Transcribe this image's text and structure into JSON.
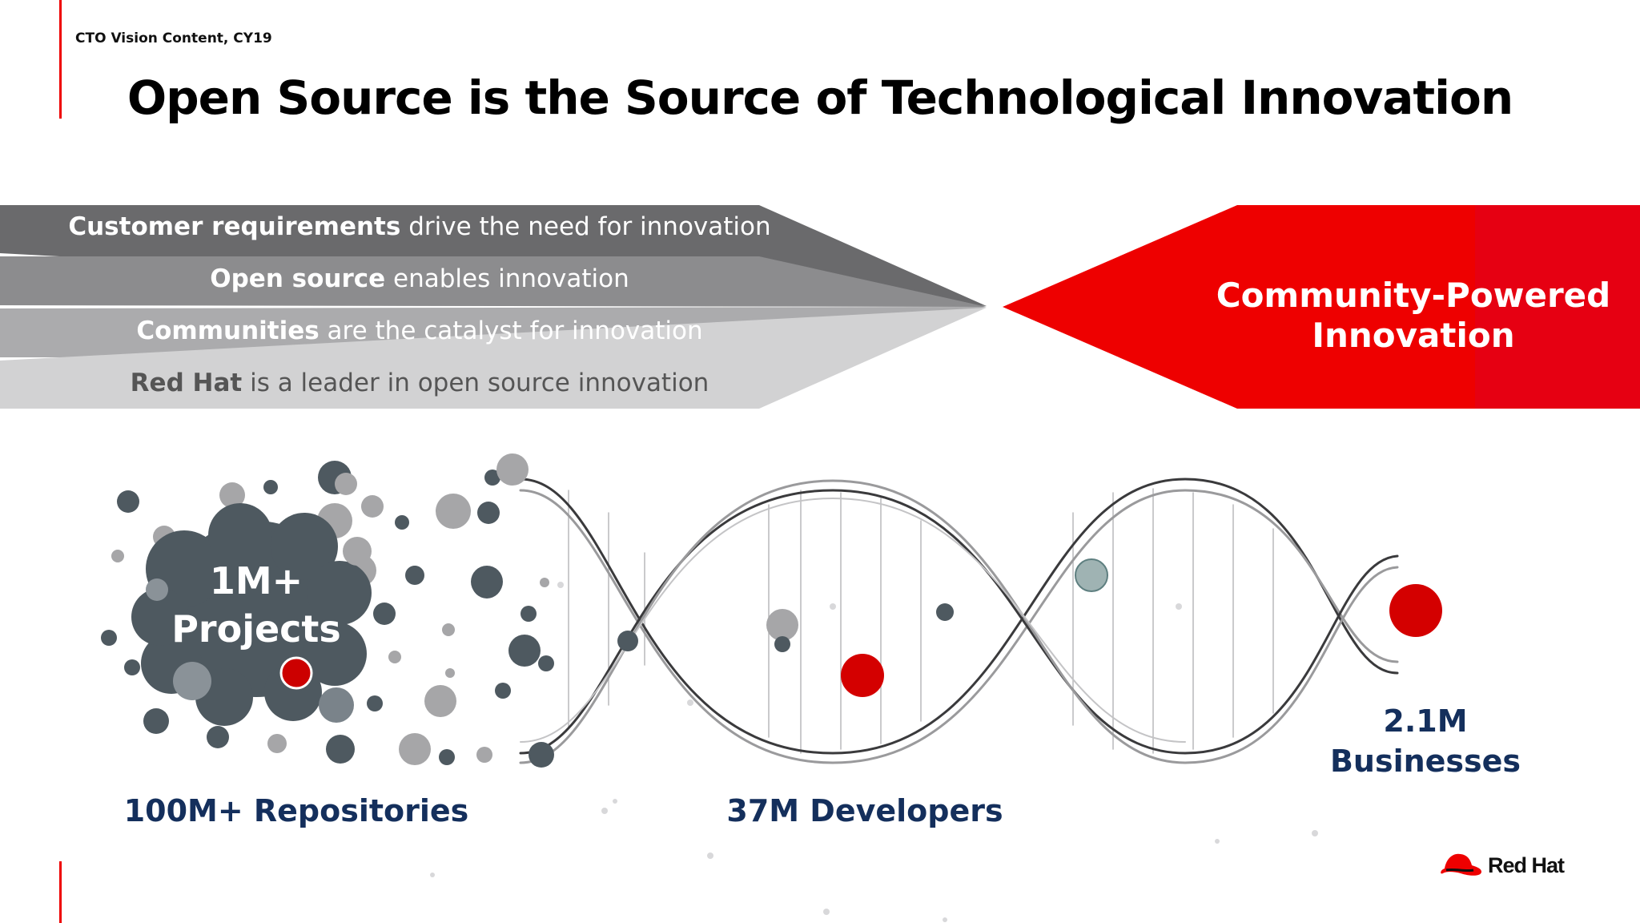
{
  "header": {
    "label": "CTO Vision Content, CY19",
    "title": "Open Source is the Source of Technological Innovation"
  },
  "bands": [
    {
      "bold": "Customer requirements",
      "rest": " drive the need for innovation"
    },
    {
      "bold": "Open source",
      "rest": " enables innovation"
    },
    {
      "bold": "Communities",
      "rest": " are the catalyst for innovation"
    },
    {
      "bold": "Red Hat",
      "rest": " is a leader in open source innovation"
    }
  ],
  "community": {
    "line1": "Community-Powered",
    "line2": "Innovation"
  },
  "projects": {
    "line1": "1M+",
    "line2": "Projects"
  },
  "stats": {
    "repositories": "100M+ Repositories",
    "developers": "37M Developers",
    "businesses_value": "2.1M",
    "businesses_label": "Businesses"
  },
  "brand": {
    "name": "Red Hat",
    "color": "#ee0000"
  },
  "colors": {
    "band1": "#6a6a6c",
    "band2": "#8c8c8e",
    "band3": "#ababad",
    "band4": "#d2d2d3",
    "accent": "#ee0000",
    "stat_text": "#142f5c",
    "bubble": "#4e5960"
  }
}
